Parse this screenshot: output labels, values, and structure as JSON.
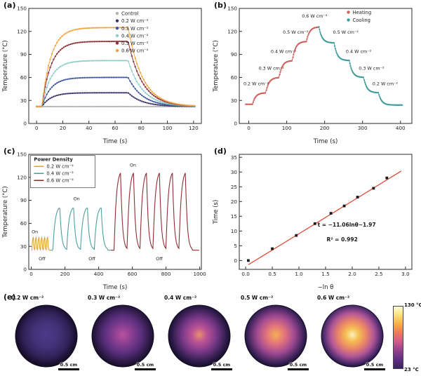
{
  "chart_data": [
    {
      "panel": "a",
      "panel_label": "(a)",
      "type": "line",
      "xlabel": "Time (s)",
      "ylabel": "Temperature (°C)",
      "xlim": [
        -6,
        126
      ],
      "ylim": [
        0,
        150
      ],
      "xticks": [
        0,
        20,
        40,
        60,
        80,
        100,
        120
      ],
      "xtick_labels": [
        "0",
        "20",
        "40",
        "60",
        "80",
        "100",
        "120"
      ],
      "yticks": [
        0,
        30,
        60,
        90,
        120,
        150
      ],
      "ytick_labels": [
        "0",
        "30",
        "60",
        "90",
        "120",
        "150"
      ],
      "baseline_c": 22,
      "heat_on_s": 4,
      "heat_off_s": 70,
      "end_s": 122,
      "series": [
        {
          "name": "Control",
          "color": "#b5b2af",
          "plateau_c": 22
        },
        {
          "name": "0.2 W cm⁻²",
          "color": "#37356b",
          "plateau_c": 40
        },
        {
          "name": "0.3 W cm⁻²",
          "color": "#3f5a9e",
          "plateau_c": 60
        },
        {
          "name": "0.4 W cm⁻²",
          "color": "#8fcdc9",
          "plateau_c": 82
        },
        {
          "name": "0.5 W cm⁻²",
          "color": "#8e3138",
          "plateau_c": 107
        },
        {
          "name": "0.6 W cm⁻²",
          "color": "#f0a53c",
          "plateau_c": 125
        }
      ]
    },
    {
      "panel": "b",
      "panel_label": "(b)",
      "type": "line",
      "xlabel": "Time (s)",
      "ylabel": "Temperature (°C)",
      "xlim": [
        -25,
        430
      ],
      "ylim": [
        0,
        150
      ],
      "xticks": [
        0,
        100,
        200,
        300,
        400
      ],
      "xtick_labels": [
        "0",
        "100",
        "200",
        "300",
        "400"
      ],
      "yticks": [
        0,
        30,
        60,
        90,
        120,
        150
      ],
      "ytick_labels": [
        "0",
        "30",
        "60",
        "90",
        "120",
        "150"
      ],
      "heating": {
        "name": "Heating",
        "color": "#cd6058",
        "start_c": 25,
        "start_s": -8,
        "segments": [
          {
            "t": 10,
            "T": 25
          },
          {
            "t": 45,
            "T": 40
          },
          {
            "t": 80,
            "T": 60
          },
          {
            "t": 115,
            "T": 82
          },
          {
            "t": 152,
            "T": 107
          },
          {
            "t": 185,
            "T": 126
          }
        ]
      },
      "cooling": {
        "name": "Cooling",
        "color": "#3e9d9a",
        "start_c": 126,
        "start_s": 185,
        "segments": [
          {
            "t": 225,
            "T": 105
          },
          {
            "t": 265,
            "T": 82
          },
          {
            "t": 303,
            "T": 60
          },
          {
            "t": 342,
            "T": 40
          },
          {
            "t": 405,
            "T": 24
          }
        ]
      },
      "annotations": [
        {
          "x": -14,
          "y": 50,
          "text": "0.2 W cm⁻²",
          "anchor": "start"
        },
        {
          "x": 26,
          "y": 70,
          "text": "0.3 W cm⁻²",
          "anchor": "start"
        },
        {
          "x": 58,
          "y": 92,
          "text": "0.4 W cm⁻²",
          "anchor": "start"
        },
        {
          "x": 90,
          "y": 117,
          "text": "0.5 W cm⁻²",
          "anchor": "start"
        },
        {
          "x": 140,
          "y": 138,
          "text": "0.6 W cm⁻²",
          "anchor": "start"
        },
        {
          "x": 222,
          "y": 117,
          "text": "0.5 W cm⁻²",
          "anchor": "start"
        },
        {
          "x": 256,
          "y": 92,
          "text": "0.4 W cm⁻²",
          "anchor": "start"
        },
        {
          "x": 290,
          "y": 70,
          "text": "0.3 W cm⁻²",
          "anchor": "start"
        },
        {
          "x": 326,
          "y": 50,
          "text": "0.2 W cm⁻²",
          "anchor": "start"
        }
      ]
    },
    {
      "panel": "c",
      "panel_label": "(c)",
      "type": "line",
      "xlabel": "Time (s)",
      "ylabel": "Temperature (°C)",
      "legend_title": "Power Density",
      "xlim": [
        -15,
        1010
      ],
      "ylim": [
        0,
        150
      ],
      "xticks": [
        0,
        200,
        400,
        600,
        800,
        1000
      ],
      "xtick_labels": [
        "0",
        "200",
        "400",
        "600",
        "800",
        "1000"
      ],
      "yticks": [
        0,
        30,
        60,
        90,
        120,
        150
      ],
      "ytick_labels": [
        "0",
        "30",
        "60",
        "90",
        "120",
        "150"
      ],
      "baseline_c": 25,
      "groups": [
        {
          "name": "0.2 W cm⁻²",
          "color": "#e2a330",
          "span": [
            0,
            118
          ],
          "t_start": 4,
          "cycles": 6,
          "period": 17,
          "peak_c": 42
        },
        {
          "name": "0.4 W cm⁻²",
          "color": "#49a2a0",
          "span": [
            118,
            472
          ],
          "t_start": 128,
          "cycles": 4,
          "period": 82,
          "peak_c": 81
        },
        {
          "name": "0.6 W cm⁻²",
          "color": "#8e2f33",
          "span": [
            472,
            1000
          ],
          "t_start": 492,
          "cycles": 6,
          "period": 77,
          "peak_c": 126
        }
      ],
      "annotations": [
        {
          "x": 2,
          "y": 47,
          "text": "On",
          "anchor": "start"
        },
        {
          "x": 44,
          "y": 12,
          "text": "Off",
          "anchor": "start"
        },
        {
          "x": 250,
          "y": 90,
          "text": "On",
          "anchor": "start"
        },
        {
          "x": 340,
          "y": 12,
          "text": "Off",
          "anchor": "start"
        },
        {
          "x": 585,
          "y": 134,
          "text": "On",
          "anchor": "start"
        },
        {
          "x": 740,
          "y": 12,
          "text": "Off",
          "anchor": "start"
        }
      ]
    },
    {
      "panel": "d",
      "panel_label": "(d)",
      "type": "scatter",
      "xlabel": "−ln θ",
      "ylabel": "Time (s)",
      "xlim": [
        -0.12,
        3.12
      ],
      "ylim": [
        -3,
        36
      ],
      "xticks": [
        0.0,
        0.5,
        1.0,
        1.5,
        2.0,
        2.5,
        3.0
      ],
      "xtick_labels": [
        "0.0",
        "0.5",
        "1.0",
        "1.5",
        "2.0",
        "2.5",
        "3.0"
      ],
      "yticks": [
        0,
        5,
        10,
        15,
        20,
        25,
        30,
        35
      ],
      "ytick_labels": [
        "0",
        "5",
        "10",
        "15",
        "20",
        "25",
        "30",
        "35"
      ],
      "marker_color": "#1b1b1b",
      "line_color": "#e04b3a",
      "points": [
        [
          0.05,
          0.0
        ],
        [
          0.5,
          4.0
        ],
        [
          0.95,
          8.5
        ],
        [
          1.3,
          12.5
        ],
        [
          1.6,
          16.0
        ],
        [
          1.85,
          18.5
        ],
        [
          2.1,
          21.5
        ],
        [
          2.4,
          24.5
        ],
        [
          2.65,
          28.0
        ]
      ],
      "fit": {
        "slope": 11.06,
        "intercept": -1.97,
        "x0": 0.05,
        "x1": 2.92
      },
      "annotations": [
        {
          "x": 1.35,
          "y": 11.5,
          "text": "t = −11.06lnθ−1.97",
          "anchor": "start",
          "bold": true,
          "size": 7.5
        },
        {
          "x": 1.52,
          "y": 6.5,
          "text": "R² = 0.992",
          "anchor": "start",
          "bold": true,
          "size": 7.5
        }
      ]
    },
    {
      "panel": "e",
      "panel_label": "(e)",
      "type": "heatmap",
      "scale_bar_label": "0.5 cm",
      "items": [
        {
          "label": "0.2 W cm⁻²",
          "stops": [
            {
              "o": 0,
              "c": "#4d3a8a"
            },
            {
              "o": 40,
              "c": "#443177"
            },
            {
              "o": 70,
              "c": "#32225a"
            },
            {
              "o": 92,
              "c": "#19102f"
            },
            {
              "o": 100,
              "c": "#120b22"
            }
          ]
        },
        {
          "label": "0.3 W cm⁻²",
          "stops": [
            {
              "o": 0,
              "c": "#bb529f"
            },
            {
              "o": 28,
              "c": "#8a3f92"
            },
            {
              "o": 58,
              "c": "#5a2f7e"
            },
            {
              "o": 88,
              "c": "#28173f"
            },
            {
              "o": 100,
              "c": "#150d26"
            }
          ]
        },
        {
          "label": "0.4 W cm⁻²",
          "stops": [
            {
              "o": 0,
              "c": "#e8926a"
            },
            {
              "o": 22,
              "c": "#c05595"
            },
            {
              "o": 52,
              "c": "#7c3a8a"
            },
            {
              "o": 86,
              "c": "#2a1a48"
            },
            {
              "o": 100,
              "c": "#150d26"
            }
          ]
        },
        {
          "label": "0.5 W cm⁻²",
          "stops": [
            {
              "o": 0,
              "c": "#f5b052"
            },
            {
              "o": 28,
              "c": "#e4757c"
            },
            {
              "o": 58,
              "c": "#a04a92"
            },
            {
              "o": 88,
              "c": "#3a2258"
            },
            {
              "o": 100,
              "c": "#1a1130"
            }
          ]
        },
        {
          "label": "0.6 W cm⁻²",
          "stops": [
            {
              "o": 0,
              "c": "#faf0bc"
            },
            {
              "o": 20,
              "c": "#f6c052"
            },
            {
              "o": 44,
              "c": "#ea8568"
            },
            {
              "o": 68,
              "c": "#b05598"
            },
            {
              "o": 90,
              "c": "#4a2a6a"
            },
            {
              "o": 100,
              "c": "#1d1236"
            }
          ]
        }
      ],
      "colorbar": {
        "top_label": "130 °C",
        "bottom_label": "23 °C",
        "stops": [
          "#fdfdd8",
          "#f8e07c",
          "#f6ae45",
          "#ec7a5e",
          "#cf5a8e",
          "#93408f",
          "#5e2f80",
          "#3c2160"
        ]
      }
    }
  ]
}
